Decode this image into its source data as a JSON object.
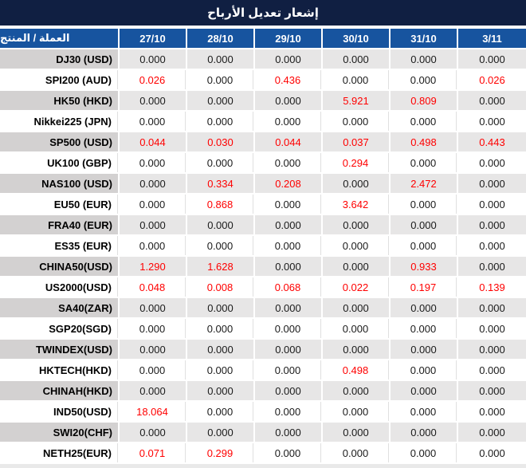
{
  "title": "إشعار تعديل الأرباح",
  "table": {
    "product_header": "العملة / المنتج",
    "date_columns": [
      "27/10",
      "28/10",
      "29/10",
      "30/10",
      "31/10",
      "3/11"
    ],
    "rows": [
      {
        "label": "DJ30 (USD)",
        "values": [
          "0.000",
          "0.000",
          "0.000",
          "0.000",
          "0.000",
          "0.000"
        ],
        "red": [
          false,
          false,
          false,
          false,
          false,
          false
        ]
      },
      {
        "label": "SPI200 (AUD)",
        "values": [
          "0.026",
          "0.000",
          "0.436",
          "0.000",
          "0.000",
          "0.026"
        ],
        "red": [
          true,
          false,
          true,
          false,
          false,
          true
        ]
      },
      {
        "label": "HK50 (HKD)",
        "values": [
          "0.000",
          "0.000",
          "0.000",
          "5.921",
          "0.809",
          "0.000"
        ],
        "red": [
          false,
          false,
          false,
          true,
          true,
          false
        ]
      },
      {
        "label": "Nikkei225 (JPN)",
        "values": [
          "0.000",
          "0.000",
          "0.000",
          "0.000",
          "0.000",
          "0.000"
        ],
        "red": [
          false,
          false,
          false,
          false,
          false,
          false
        ]
      },
      {
        "label": "SP500 (USD)",
        "values": [
          "0.044",
          "0.030",
          "0.044",
          "0.037",
          "0.498",
          "0.443"
        ],
        "red": [
          true,
          true,
          true,
          true,
          true,
          true
        ]
      },
      {
        "label": "UK100 (GBP)",
        "values": [
          "0.000",
          "0.000",
          "0.000",
          "0.294",
          "0.000",
          "0.000"
        ],
        "red": [
          false,
          false,
          false,
          true,
          false,
          false
        ]
      },
      {
        "label": "NAS100 (USD)",
        "values": [
          "0.000",
          "0.334",
          "0.208",
          "0.000",
          "2.472",
          "0.000"
        ],
        "red": [
          false,
          true,
          true,
          false,
          true,
          false
        ]
      },
      {
        "label": "EU50 (EUR)",
        "values": [
          "0.000",
          "0.868",
          "0.000",
          "3.642",
          "0.000",
          "0.000"
        ],
        "red": [
          false,
          true,
          false,
          true,
          false,
          false
        ]
      },
      {
        "label": "FRA40 (EUR)",
        "values": [
          "0.000",
          "0.000",
          "0.000",
          "0.000",
          "0.000",
          "0.000"
        ],
        "red": [
          false,
          false,
          false,
          false,
          false,
          false
        ]
      },
      {
        "label": "ES35 (EUR)",
        "values": [
          "0.000",
          "0.000",
          "0.000",
          "0.000",
          "0.000",
          "0.000"
        ],
        "red": [
          false,
          false,
          false,
          false,
          false,
          false
        ]
      },
      {
        "label": "CHINA50(USD)",
        "values": [
          "1.290",
          "1.628",
          "0.000",
          "0.000",
          "0.933",
          "0.000"
        ],
        "red": [
          true,
          true,
          false,
          false,
          true,
          false
        ]
      },
      {
        "label": "US2000(USD)",
        "values": [
          "0.048",
          "0.008",
          "0.068",
          "0.022",
          "0.197",
          "0.139"
        ],
        "red": [
          true,
          true,
          true,
          true,
          true,
          true
        ]
      },
      {
        "label": "SA40(ZAR)",
        "values": [
          "0.000",
          "0.000",
          "0.000",
          "0.000",
          "0.000",
          "0.000"
        ],
        "red": [
          false,
          false,
          false,
          false,
          false,
          false
        ]
      },
      {
        "label": "SGP20(SGD)",
        "values": [
          "0.000",
          "0.000",
          "0.000",
          "0.000",
          "0.000",
          "0.000"
        ],
        "red": [
          false,
          false,
          false,
          false,
          false,
          false
        ]
      },
      {
        "label": "TWINDEX(USD)",
        "values": [
          "0.000",
          "0.000",
          "0.000",
          "0.000",
          "0.000",
          "0.000"
        ],
        "red": [
          false,
          false,
          false,
          false,
          false,
          false
        ]
      },
      {
        "label": "HKTECH(HKD)",
        "values": [
          "0.000",
          "0.000",
          "0.000",
          "0.498",
          "0.000",
          "0.000"
        ],
        "red": [
          false,
          false,
          false,
          true,
          false,
          false
        ]
      },
      {
        "label": "CHINAH(HKD)",
        "values": [
          "0.000",
          "0.000",
          "0.000",
          "0.000",
          "0.000",
          "0.000"
        ],
        "red": [
          false,
          false,
          false,
          false,
          false,
          false
        ]
      },
      {
        "label": "IND50(USD)",
        "values": [
          "18.064",
          "0.000",
          "0.000",
          "0.000",
          "0.000",
          "0.000"
        ],
        "red": [
          true,
          false,
          false,
          false,
          false,
          false
        ]
      },
      {
        "label": "SWI20(CHF)",
        "values": [
          "0.000",
          "0.000",
          "0.000",
          "0.000",
          "0.000",
          "0.000"
        ],
        "red": [
          false,
          false,
          false,
          false,
          false,
          false
        ]
      },
      {
        "label": "NETH25(EUR)",
        "values": [
          "0.071",
          "0.299",
          "0.000",
          "0.000",
          "0.000",
          "0.000"
        ],
        "red": [
          true,
          true,
          false,
          false,
          false,
          false
        ]
      }
    ]
  },
  "colors": {
    "title_bar_bg": "#101f42",
    "header_bg": "#17549f",
    "highlight_red": "#ff0000",
    "row_gray_label": "#d3d1d1",
    "row_gray_value": "#e7e6e6"
  }
}
